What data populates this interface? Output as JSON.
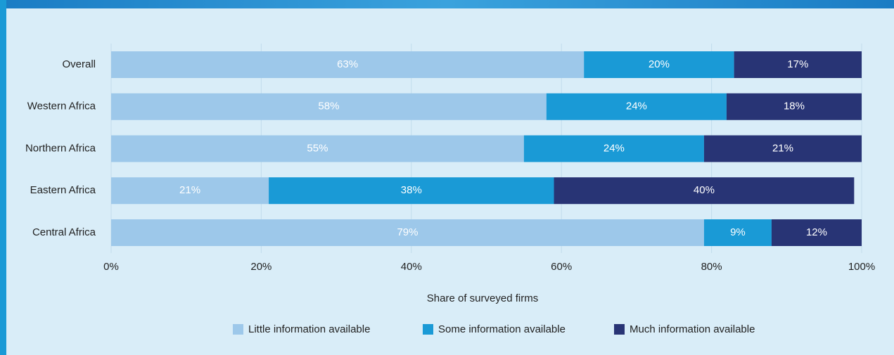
{
  "chart_data": {
    "type": "stacked-barh",
    "categories": [
      "Overall",
      "Western Africa",
      "Northern Africa",
      "Eastern Africa",
      "Central Africa"
    ],
    "series": [
      {
        "name": "Little information available",
        "color": "#9dc8ea",
        "values": [
          63,
          58,
          55,
          21,
          79
        ],
        "value_labels": [
          "63%",
          "58%",
          "55%",
          "21%",
          "79%"
        ]
      },
      {
        "name": "Some information available",
        "color": "#1a9ad6",
        "values": [
          20,
          24,
          24,
          38,
          9
        ],
        "value_labels": [
          "20%",
          "24%",
          "24%",
          "38%",
          "9%"
        ]
      },
      {
        "name": "Much information available",
        "color": "#283475",
        "values": [
          17,
          18,
          21,
          40,
          12
        ],
        "value_labels": [
          "17%",
          "18%",
          "21%",
          "40%",
          "12%"
        ]
      }
    ],
    "xlabel": "Share of surveyed firms",
    "xlim": [
      0,
      100
    ],
    "xticks": [
      {
        "value": 0,
        "label": "0%"
      },
      {
        "value": 20,
        "label": "20%"
      },
      {
        "value": 40,
        "label": "40%"
      },
      {
        "value": 60,
        "label": "60%"
      },
      {
        "value": 80,
        "label": "80%"
      },
      {
        "value": 100,
        "label": "100%"
      }
    ],
    "grid": true,
    "legend": "bottom"
  }
}
